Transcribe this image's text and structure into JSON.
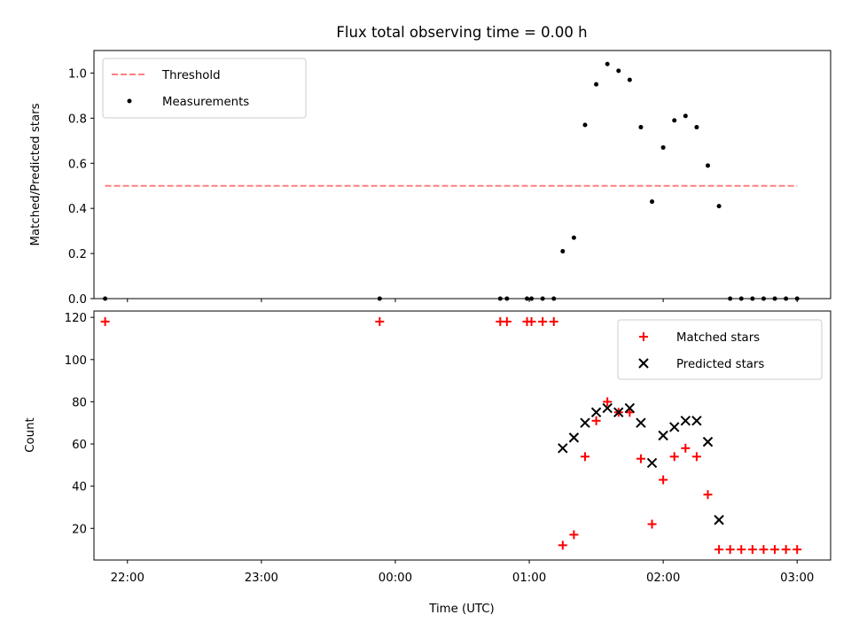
{
  "colors": {
    "threshold": "#ff0000",
    "matched": "#ff0000",
    "predicted": "#000000",
    "measurement": "#000000"
  },
  "chart_data": [
    {
      "type": "scatter",
      "title": "Flux total observing time = 0.00 h",
      "xlabel": "",
      "ylabel": "Matched/Predicted stars",
      "xlim": [
        "21:45",
        "03:15"
      ],
      "ylim": [
        0,
        1.1
      ],
      "yticks": [
        "0.0",
        "0.2",
        "0.4",
        "0.6",
        "0.8",
        "1.0"
      ],
      "ytick_values": [
        0,
        0.2,
        0.4,
        0.6,
        0.8,
        1.0
      ],
      "legend_position": "upper-left",
      "threshold": {
        "name": "Threshold",
        "value": 0.5,
        "x_range": [
          "21:50",
          "03:00"
        ],
        "style": "dashed"
      },
      "series": [
        {
          "name": "Measurements",
          "marker": "dot",
          "x": [
            "21:50",
            "23:53",
            "00:47",
            "00:50",
            "00:59",
            "01:01",
            "01:06",
            "01:11",
            "01:15",
            "01:20",
            "01:25",
            "01:30",
            "01:35",
            "01:40",
            "01:45",
            "01:50",
            "01:55",
            "02:00",
            "02:05",
            "02:10",
            "02:15",
            "02:20",
            "02:25",
            "02:30",
            "02:35",
            "02:40",
            "02:45",
            "02:50",
            "02:55",
            "03:00"
          ],
          "y": [
            0,
            0,
            0,
            0,
            0,
            0,
            0,
            0,
            0.21,
            0.27,
            0.77,
            0.95,
            1.04,
            1.01,
            0.97,
            0.76,
            0.43,
            0.67,
            0.79,
            0.81,
            0.76,
            0.59,
            0.41,
            0,
            0,
            0,
            0,
            0,
            0,
            0
          ]
        }
      ]
    },
    {
      "type": "scatter",
      "title": "",
      "xlabel": "Time (UTC)",
      "ylabel": "Count",
      "xlim": [
        "21:45",
        "03:15"
      ],
      "ylim": [
        5,
        123
      ],
      "yticks": [
        "20",
        "40",
        "60",
        "80",
        "100",
        "120"
      ],
      "ytick_values": [
        20,
        40,
        60,
        80,
        100,
        120
      ],
      "xticks": [
        "22:00",
        "23:00",
        "00:00",
        "01:00",
        "02:00",
        "03:00"
      ],
      "legend_position": "upper-right",
      "series": [
        {
          "name": "Matched stars",
          "marker": "plus",
          "x": [
            "21:50",
            "23:53",
            "00:47",
            "00:50",
            "00:59",
            "01:01",
            "01:06",
            "01:11",
            "01:15",
            "01:20",
            "01:25",
            "01:30",
            "01:35",
            "01:40",
            "01:45",
            "01:50",
            "01:55",
            "02:00",
            "02:05",
            "02:10",
            "02:15",
            "02:20",
            "02:25",
            "02:30",
            "02:35",
            "02:40",
            "02:45",
            "02:50",
            "02:55",
            "03:00"
          ],
          "y": [
            118,
            118,
            118,
            118,
            118,
            118,
            118,
            118,
            12,
            17,
            54,
            71,
            80,
            75,
            75,
            53,
            22,
            43,
            54,
            58,
            54,
            36,
            10,
            10,
            10,
            10,
            10,
            10,
            10,
            10
          ]
        },
        {
          "name": "Predicted stars",
          "marker": "x",
          "x": [
            "01:15",
            "01:20",
            "01:25",
            "01:30",
            "01:35",
            "01:40",
            "01:45",
            "01:50",
            "01:55",
            "02:00",
            "02:05",
            "02:10",
            "02:15",
            "02:20",
            "02:25"
          ],
          "y": [
            58,
            63,
            70,
            75,
            77,
            75,
            77,
            70,
            51,
            64,
            68,
            71,
            71,
            61,
            24
          ]
        }
      ]
    }
  ]
}
